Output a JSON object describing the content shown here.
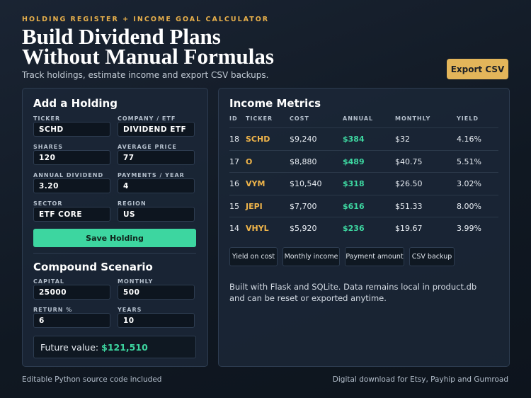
{
  "header": {
    "eyebrow": "HOLDING REGISTER + INCOME GOAL CALCULATOR",
    "title_lines": [
      "Build Dividend Plans",
      "Without Manual Formulas"
    ],
    "subtitle": "Track holdings, estimate income and export CSV backups.",
    "export_button": "Export CSV"
  },
  "holding_form": {
    "title": "Add a Holding",
    "fields": [
      {
        "label": "TICKER",
        "value": "SCHD"
      },
      {
        "label": "COMPANY / ETF",
        "value": "DIVIDEND ETF"
      },
      {
        "label": "SHARES",
        "value": "120"
      },
      {
        "label": "AVERAGE PRICE",
        "value": "77"
      },
      {
        "label": "ANNUAL DIVIDEND",
        "value": "3.20"
      },
      {
        "label": "PAYMENTS / YEAR",
        "value": "4"
      },
      {
        "label": "SECTOR",
        "value": "ETF CORE"
      },
      {
        "label": "REGION",
        "value": "US"
      }
    ],
    "save_button": "Save Holding"
  },
  "compound": {
    "title": "Compound Scenario",
    "fields": [
      {
        "label": "CAPITAL",
        "value": "25000"
      },
      {
        "label": "MONTHLY",
        "value": "500"
      },
      {
        "label": "RETURN %",
        "value": "6"
      },
      {
        "label": "YEARS",
        "value": "10"
      }
    ],
    "result_label": "Future value:",
    "result_value": "$121,510"
  },
  "metrics": {
    "title": "Income Metrics",
    "columns": [
      "ID",
      "TICKER",
      "COST",
      "ANNUAL",
      "MONTHLY",
      "YIELD"
    ],
    "rows": [
      [
        "18",
        "SCHD",
        "$9,240",
        "$384",
        "$32",
        "4.16%"
      ],
      [
        "17",
        "O",
        "$8,880",
        "$489",
        "$40.75",
        "5.51%"
      ],
      [
        "16",
        "VYM",
        "$10,540",
        "$318",
        "$26.50",
        "3.02%"
      ],
      [
        "15",
        "JEPI",
        "$7,700",
        "$616",
        "$51.33",
        "8.00%"
      ],
      [
        "14",
        "VHYL",
        "$5,920",
        "$236",
        "$19.67",
        "3.99%"
      ]
    ],
    "tabs": [
      "Yield on cost",
      "Monthly income",
      "Payment amount",
      "CSV backup"
    ],
    "note": "Built with Flask and SQLite. Data remains local in product.db and can be reset or exported anytime."
  },
  "footer": {
    "left": "Editable Python source code included",
    "right": "Digital download for Etsy, Payhip and Gumroad"
  }
}
